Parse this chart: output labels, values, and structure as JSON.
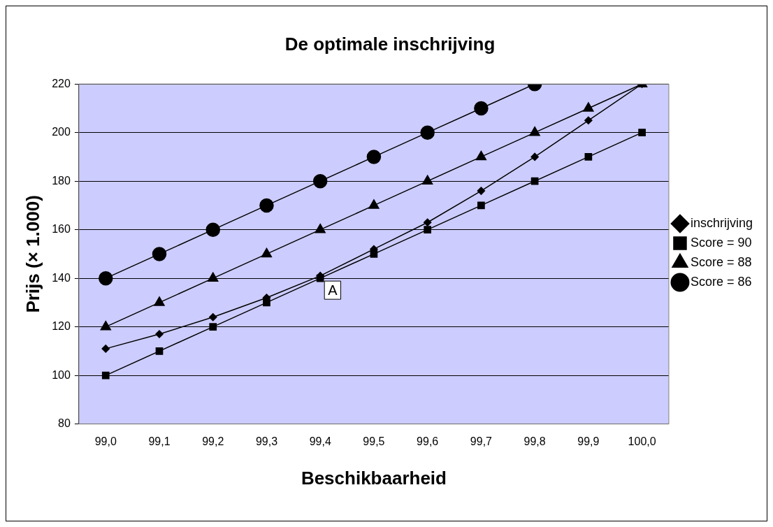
{
  "chart_data": {
    "type": "line",
    "title": "De optimale inschrijving",
    "xlabel": "Beschikbaarheid",
    "ylabel": "Prijs (× 1.000)",
    "categories": [
      "99,0",
      "99,1",
      "99,2",
      "99,3",
      "99,4",
      "99,5",
      "99,6",
      "99,7",
      "99,8",
      "99,9",
      "100,0"
    ],
    "series": [
      {
        "name": "inschrijving",
        "color": "#000000",
        "marker": "diamond",
        "values": [
          111,
          117,
          124,
          132,
          141,
          152,
          163,
          176,
          190,
          205,
          220
        ]
      },
      {
        "name": "Score = 90",
        "color": "#000000",
        "marker": "square",
        "values": [
          100,
          110,
          120,
          130,
          140,
          150,
          160,
          170,
          180,
          190,
          200
        ]
      },
      {
        "name": "Score = 88",
        "color": "#000000",
        "marker": "triangle",
        "values": [
          120,
          130,
          140,
          150,
          160,
          170,
          180,
          190,
          200,
          210,
          220
        ]
      },
      {
        "name": "Score = 86",
        "color": "#000000",
        "marker": "circle",
        "values": [
          140,
          150,
          160,
          170,
          180,
          190,
          200,
          210,
          220,
          null,
          null
        ]
      }
    ],
    "ylim": [
      80,
      220
    ],
    "yticks": [
      80,
      100,
      120,
      140,
      160,
      180,
      200,
      220
    ],
    "grid": "y",
    "legend": "right",
    "line_style": "solid",
    "annotations": [
      {
        "text": "A",
        "x": "99,4",
        "y": 140
      }
    ]
  }
}
